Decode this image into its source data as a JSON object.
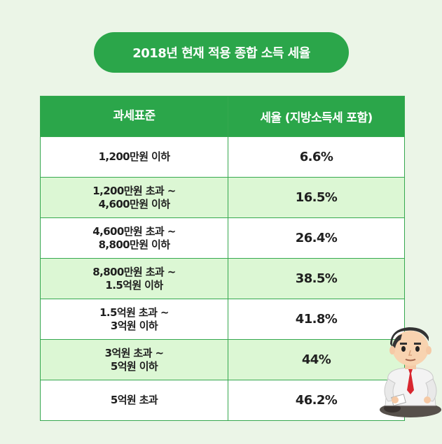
{
  "title": "2018년 현재 적용 종합 소득 세율",
  "table": {
    "headers": {
      "bracket": "과세표준",
      "rate": "세율 (지방소득세 포함)"
    },
    "rows": [
      {
        "bracket_line1": "1,200만원 이하",
        "bracket_line2": "",
        "rate": "6.6%"
      },
      {
        "bracket_line1": "1,200만원 초과 ~",
        "bracket_line2": "4,600만원 이하",
        "rate": "16.5%"
      },
      {
        "bracket_line1": "4,600만원 초과 ~",
        "bracket_line2": "8,800만원 이하",
        "rate": "26.4%"
      },
      {
        "bracket_line1": "8,800만원 초과 ~",
        "bracket_line2": "1.5억원 이하",
        "rate": "38.5%"
      },
      {
        "bracket_line1": "1.5억원 초과 ~",
        "bracket_line2": "3억원 이하",
        "rate": "41.8%"
      },
      {
        "bracket_line1": "3억원 초과 ~",
        "bracket_line2": "5억원 이하",
        "rate": "44%"
      },
      {
        "bracket_line1": "5억원 초과",
        "bracket_line2": "",
        "rate": "46.2%"
      }
    ]
  },
  "colors": {
    "accent_green": "#2ba64a",
    "row_tint": "#dcf7d4",
    "background": "#ebf5e7"
  },
  "illustration": "businessman-character-icon"
}
